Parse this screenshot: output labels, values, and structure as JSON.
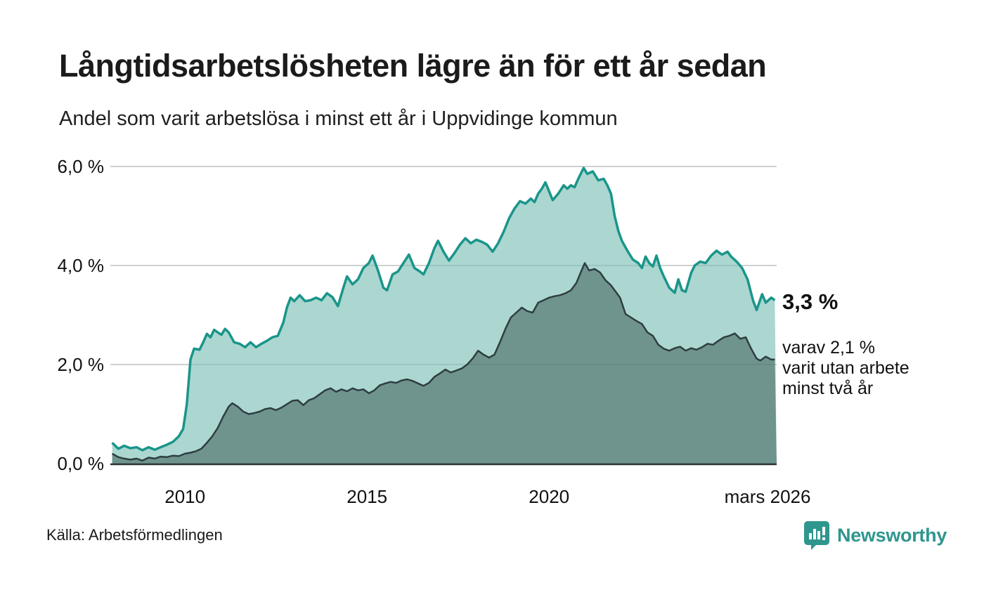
{
  "header": {
    "title": "Långtidsarbetslösheten lägre än för ett år sedan",
    "subtitle": "Andel som varit arbetslösa i minst ett år i Uppvidinge kommun"
  },
  "chart_data": {
    "type": "area",
    "title": "Långtidsarbetslösheten lägre än för ett år sedan",
    "xlabel": "",
    "ylabel": "",
    "unit": "%",
    "grid": true,
    "legend_position": "none",
    "x_range": [
      2007.95,
      2026.25
    ],
    "y_range": [
      0,
      6.2
    ],
    "x_axis_ticks": [
      {
        "label": "2010",
        "year": 2010
      },
      {
        "label": "2015",
        "year": 2015
      },
      {
        "label": "2020",
        "year": 2020
      },
      {
        "label": "mars 2026",
        "year": 2026.0
      }
    ],
    "y_axis_ticks": [
      {
        "label": "0,0 %",
        "value": 0
      },
      {
        "label": "2,0 %",
        "value": 2
      },
      {
        "label": "4,0 %",
        "value": 4
      },
      {
        "label": "6,0 %",
        "value": 6
      }
    ],
    "series": [
      {
        "name": "arbetslösa minst ett år",
        "latest_label": "3,3 %",
        "points": [
          [
            2008.0,
            0.42
          ],
          [
            2008.17,
            0.3
          ],
          [
            2008.33,
            0.36
          ],
          [
            2008.5,
            0.31
          ],
          [
            2008.67,
            0.33
          ],
          [
            2008.83,
            0.27
          ],
          [
            2009.0,
            0.33
          ],
          [
            2009.17,
            0.28
          ],
          [
            2009.33,
            0.33
          ],
          [
            2009.5,
            0.38
          ],
          [
            2009.67,
            0.44
          ],
          [
            2009.83,
            0.55
          ],
          [
            2009.95,
            0.7
          ],
          [
            2010.05,
            1.2
          ],
          [
            2010.15,
            2.1
          ],
          [
            2010.25,
            2.32
          ],
          [
            2010.4,
            2.3
          ],
          [
            2010.5,
            2.45
          ],
          [
            2010.6,
            2.62
          ],
          [
            2010.7,
            2.55
          ],
          [
            2010.8,
            2.7
          ],
          [
            2010.9,
            2.65
          ],
          [
            2011.0,
            2.6
          ],
          [
            2011.1,
            2.72
          ],
          [
            2011.2,
            2.65
          ],
          [
            2011.35,
            2.45
          ],
          [
            2011.5,
            2.42
          ],
          [
            2011.65,
            2.35
          ],
          [
            2011.8,
            2.45
          ],
          [
            2011.95,
            2.35
          ],
          [
            2012.1,
            2.42
          ],
          [
            2012.25,
            2.48
          ],
          [
            2012.4,
            2.55
          ],
          [
            2012.55,
            2.58
          ],
          [
            2012.7,
            2.85
          ],
          [
            2012.8,
            3.15
          ],
          [
            2012.9,
            3.35
          ],
          [
            2013.0,
            3.28
          ],
          [
            2013.15,
            3.4
          ],
          [
            2013.3,
            3.28
          ],
          [
            2013.45,
            3.3
          ],
          [
            2013.6,
            3.35
          ],
          [
            2013.75,
            3.3
          ],
          [
            2013.9,
            3.44
          ],
          [
            2014.05,
            3.36
          ],
          [
            2014.2,
            3.18
          ],
          [
            2014.35,
            3.55
          ],
          [
            2014.45,
            3.78
          ],
          [
            2014.6,
            3.62
          ],
          [
            2014.75,
            3.72
          ],
          [
            2014.9,
            3.95
          ],
          [
            2015.05,
            4.05
          ],
          [
            2015.15,
            4.2
          ],
          [
            2015.3,
            3.9
          ],
          [
            2015.45,
            3.55
          ],
          [
            2015.55,
            3.5
          ],
          [
            2015.7,
            3.82
          ],
          [
            2015.85,
            3.88
          ],
          [
            2016.0,
            4.05
          ],
          [
            2016.15,
            4.22
          ],
          [
            2016.3,
            3.95
          ],
          [
            2016.45,
            3.88
          ],
          [
            2016.55,
            3.82
          ],
          [
            2016.7,
            4.05
          ],
          [
            2016.85,
            4.35
          ],
          [
            2016.95,
            4.5
          ],
          [
            2017.1,
            4.28
          ],
          [
            2017.25,
            4.1
          ],
          [
            2017.4,
            4.25
          ],
          [
            2017.55,
            4.42
          ],
          [
            2017.7,
            4.55
          ],
          [
            2017.85,
            4.45
          ],
          [
            2018.0,
            4.52
          ],
          [
            2018.15,
            4.48
          ],
          [
            2018.3,
            4.42
          ],
          [
            2018.45,
            4.28
          ],
          [
            2018.6,
            4.45
          ],
          [
            2018.75,
            4.68
          ],
          [
            2018.9,
            4.95
          ],
          [
            2019.05,
            5.15
          ],
          [
            2019.2,
            5.3
          ],
          [
            2019.35,
            5.25
          ],
          [
            2019.5,
            5.35
          ],
          [
            2019.6,
            5.28
          ],
          [
            2019.7,
            5.45
          ],
          [
            2019.8,
            5.55
          ],
          [
            2019.9,
            5.68
          ],
          [
            2020.0,
            5.5
          ],
          [
            2020.1,
            5.32
          ],
          [
            2020.25,
            5.45
          ],
          [
            2020.4,
            5.62
          ],
          [
            2020.5,
            5.55
          ],
          [
            2020.6,
            5.62
          ],
          [
            2020.7,
            5.58
          ],
          [
            2020.8,
            5.75
          ],
          [
            2020.95,
            5.97
          ],
          [
            2021.05,
            5.85
          ],
          [
            2021.2,
            5.9
          ],
          [
            2021.35,
            5.72
          ],
          [
            2021.5,
            5.75
          ],
          [
            2021.6,
            5.62
          ],
          [
            2021.7,
            5.45
          ],
          [
            2021.8,
            5.0
          ],
          [
            2021.9,
            4.7
          ],
          [
            2022.0,
            4.5
          ],
          [
            2022.15,
            4.3
          ],
          [
            2022.3,
            4.12
          ],
          [
            2022.45,
            4.05
          ],
          [
            2022.55,
            3.95
          ],
          [
            2022.65,
            4.18
          ],
          [
            2022.75,
            4.05
          ],
          [
            2022.85,
            3.98
          ],
          [
            2022.95,
            4.2
          ],
          [
            2023.05,
            3.95
          ],
          [
            2023.15,
            3.78
          ],
          [
            2023.3,
            3.55
          ],
          [
            2023.45,
            3.45
          ],
          [
            2023.55,
            3.72
          ],
          [
            2023.65,
            3.5
          ],
          [
            2023.75,
            3.47
          ],
          [
            2023.9,
            3.85
          ],
          [
            2024.0,
            4.0
          ],
          [
            2024.15,
            4.08
          ],
          [
            2024.3,
            4.05
          ],
          [
            2024.45,
            4.2
          ],
          [
            2024.6,
            4.3
          ],
          [
            2024.75,
            4.22
          ],
          [
            2024.9,
            4.28
          ],
          [
            2025.0,
            4.18
          ],
          [
            2025.15,
            4.08
          ],
          [
            2025.3,
            3.95
          ],
          [
            2025.45,
            3.72
          ],
          [
            2025.6,
            3.3
          ],
          [
            2025.7,
            3.1
          ],
          [
            2025.85,
            3.42
          ],
          [
            2025.95,
            3.25
          ],
          [
            2026.1,
            3.35
          ],
          [
            2026.2,
            3.3
          ]
        ]
      },
      {
        "name": "utan arbete minst två år",
        "latest_label": "2,1 %",
        "points": [
          [
            2008.0,
            0.2
          ],
          [
            2008.17,
            0.13
          ],
          [
            2008.33,
            0.1
          ],
          [
            2008.5,
            0.08
          ],
          [
            2008.67,
            0.1
          ],
          [
            2008.83,
            0.06
          ],
          [
            2009.0,
            0.12
          ],
          [
            2009.17,
            0.1
          ],
          [
            2009.33,
            0.14
          ],
          [
            2009.5,
            0.13
          ],
          [
            2009.67,
            0.16
          ],
          [
            2009.83,
            0.15
          ],
          [
            2010.0,
            0.2
          ],
          [
            2010.15,
            0.22
          ],
          [
            2010.3,
            0.25
          ],
          [
            2010.45,
            0.3
          ],
          [
            2010.6,
            0.42
          ],
          [
            2010.75,
            0.55
          ],
          [
            2010.9,
            0.72
          ],
          [
            2011.05,
            0.95
          ],
          [
            2011.2,
            1.15
          ],
          [
            2011.3,
            1.22
          ],
          [
            2011.45,
            1.15
          ],
          [
            2011.6,
            1.05
          ],
          [
            2011.75,
            1.0
          ],
          [
            2011.9,
            1.02
          ],
          [
            2012.05,
            1.05
          ],
          [
            2012.2,
            1.1
          ],
          [
            2012.35,
            1.12
          ],
          [
            2012.5,
            1.08
          ],
          [
            2012.65,
            1.13
          ],
          [
            2012.8,
            1.2
          ],
          [
            2012.95,
            1.27
          ],
          [
            2013.1,
            1.28
          ],
          [
            2013.25,
            1.18
          ],
          [
            2013.4,
            1.28
          ],
          [
            2013.55,
            1.32
          ],
          [
            2013.7,
            1.4
          ],
          [
            2013.85,
            1.48
          ],
          [
            2014.0,
            1.52
          ],
          [
            2014.15,
            1.45
          ],
          [
            2014.3,
            1.5
          ],
          [
            2014.45,
            1.46
          ],
          [
            2014.6,
            1.52
          ],
          [
            2014.75,
            1.48
          ],
          [
            2014.9,
            1.5
          ],
          [
            2015.05,
            1.42
          ],
          [
            2015.2,
            1.48
          ],
          [
            2015.35,
            1.58
          ],
          [
            2015.5,
            1.62
          ],
          [
            2015.65,
            1.65
          ],
          [
            2015.8,
            1.63
          ],
          [
            2015.95,
            1.68
          ],
          [
            2016.1,
            1.7
          ],
          [
            2016.25,
            1.67
          ],
          [
            2016.4,
            1.62
          ],
          [
            2016.55,
            1.57
          ],
          [
            2016.7,
            1.63
          ],
          [
            2016.85,
            1.75
          ],
          [
            2017.0,
            1.82
          ],
          [
            2017.15,
            1.9
          ],
          [
            2017.3,
            1.84
          ],
          [
            2017.45,
            1.88
          ],
          [
            2017.6,
            1.92
          ],
          [
            2017.75,
            2.0
          ],
          [
            2017.9,
            2.12
          ],
          [
            2018.05,
            2.28
          ],
          [
            2018.2,
            2.2
          ],
          [
            2018.35,
            2.14
          ],
          [
            2018.5,
            2.2
          ],
          [
            2018.65,
            2.45
          ],
          [
            2018.8,
            2.72
          ],
          [
            2018.95,
            2.95
          ],
          [
            2019.1,
            3.05
          ],
          [
            2019.25,
            3.15
          ],
          [
            2019.4,
            3.08
          ],
          [
            2019.55,
            3.05
          ],
          [
            2019.7,
            3.25
          ],
          [
            2019.85,
            3.3
          ],
          [
            2020.0,
            3.35
          ],
          [
            2020.15,
            3.38
          ],
          [
            2020.3,
            3.4
          ],
          [
            2020.45,
            3.44
          ],
          [
            2020.6,
            3.5
          ],
          [
            2020.75,
            3.65
          ],
          [
            2020.88,
            3.88
          ],
          [
            2020.98,
            4.05
          ],
          [
            2021.1,
            3.9
          ],
          [
            2021.25,
            3.93
          ],
          [
            2021.4,
            3.86
          ],
          [
            2021.55,
            3.7
          ],
          [
            2021.7,
            3.6
          ],
          [
            2021.85,
            3.45
          ],
          [
            2021.95,
            3.35
          ],
          [
            2022.1,
            3.02
          ],
          [
            2022.25,
            2.95
          ],
          [
            2022.4,
            2.88
          ],
          [
            2022.55,
            2.82
          ],
          [
            2022.7,
            2.65
          ],
          [
            2022.85,
            2.58
          ],
          [
            2023.0,
            2.4
          ],
          [
            2023.15,
            2.32
          ],
          [
            2023.3,
            2.28
          ],
          [
            2023.45,
            2.33
          ],
          [
            2023.6,
            2.36
          ],
          [
            2023.75,
            2.28
          ],
          [
            2023.9,
            2.33
          ],
          [
            2024.05,
            2.3
          ],
          [
            2024.2,
            2.35
          ],
          [
            2024.35,
            2.42
          ],
          [
            2024.5,
            2.4
          ],
          [
            2024.65,
            2.48
          ],
          [
            2024.8,
            2.55
          ],
          [
            2024.95,
            2.58
          ],
          [
            2025.1,
            2.63
          ],
          [
            2025.25,
            2.52
          ],
          [
            2025.4,
            2.55
          ],
          [
            2025.55,
            2.32
          ],
          [
            2025.7,
            2.12
          ],
          [
            2025.8,
            2.08
          ],
          [
            2025.95,
            2.16
          ],
          [
            2026.1,
            2.1
          ],
          [
            2026.2,
            2.1
          ]
        ]
      }
    ]
  },
  "annotations": {
    "latest_value": "3,3 %",
    "note_lines": [
      "varav 2,1 %",
      "varit utan arbete",
      "minst två år"
    ]
  },
  "footer": {
    "source": "Källa: Arbetsförmedlingen",
    "logo_text": "Newsworthy"
  },
  "colors": {
    "series1_line": "#1a958a",
    "series1_fill": "#abd7d0",
    "series2_line": "#2e3e42",
    "series2_fill": "#6f948e",
    "gridline": "#e4e4e4",
    "grid_overlay": "rgba(70,78,82,0.13)",
    "baseline": "#2c3437",
    "brand_teal": "#2f968e",
    "text": "#111111"
  }
}
